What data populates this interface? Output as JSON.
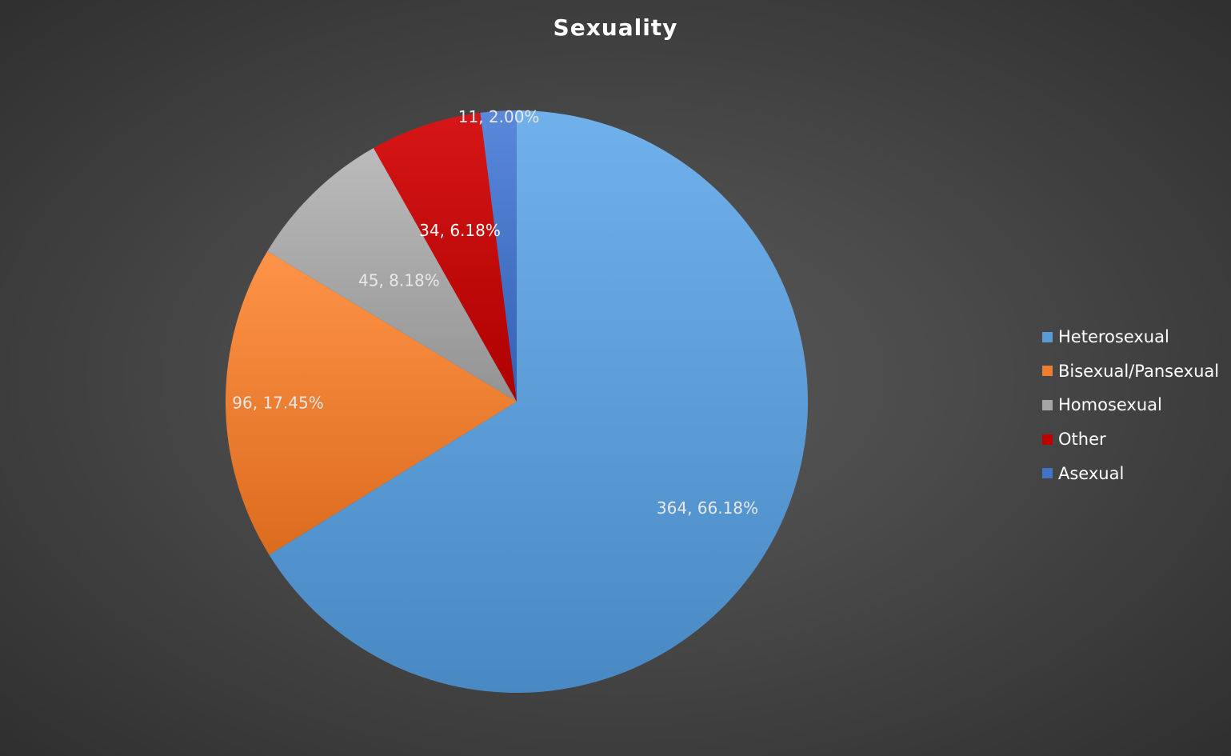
{
  "chart_data": {
    "type": "pie",
    "title": "Sexuality",
    "slices": [
      {
        "name": "Heterosexual",
        "value": 364,
        "percent": 66.18,
        "label": "364, 66.18%",
        "color": "#5b9bd5",
        "label_color": "#e8e8e8"
      },
      {
        "name": "Bisexual/Pansexual",
        "value": 96,
        "percent": 17.45,
        "label": "96, 17.45%",
        "color": "#ed7d31",
        "label_color": "#e8e8e8"
      },
      {
        "name": "Homosexual",
        "value": 45,
        "percent": 8.18,
        "label": "45, 8.18%",
        "color": "#a5a5a5",
        "label_color": "#e8e8e8"
      },
      {
        "name": "Other",
        "value": 34,
        "percent": 6.18,
        "label": "34, 6.18%",
        "color": "#c00000",
        "label_color": "#ffffff"
      },
      {
        "name": "Asexual",
        "value": 11,
        "percent": 2.0,
        "label": "11, 2.00%",
        "color": "#4472c4",
        "label_color": "#e8e8e8"
      }
    ],
    "legend_position": "right"
  }
}
